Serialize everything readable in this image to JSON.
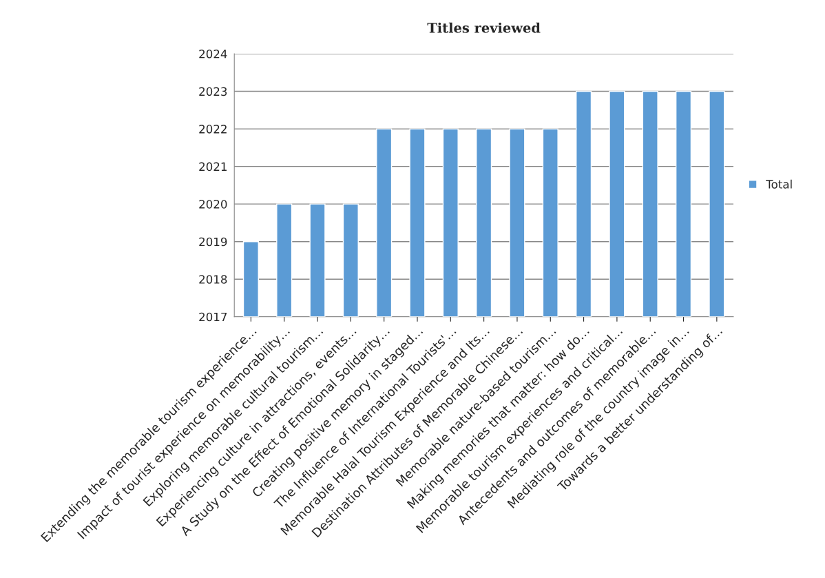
{
  "chart_data": {
    "type": "bar",
    "title": "Titles reviewed",
    "categories": [
      "Extending the memorable tourism experience…",
      "Impact of tourist experience on memorability…",
      "Exploring memorable cultural tourism…",
      "Experiencing culture in attractions, events…",
      "A Study on the Effect of Emotional Solidarity…",
      "Creating positive memory in staged…",
      "The Influence of International Tourists'…",
      "Memorable Halal Tourism Experience and Its…",
      "Destination Attributes of Memorable Chinese…",
      "Memorable nature-based tourism…",
      "Making memories that matter: how do…",
      "Memorable tourism experiences and critical…",
      "Antecedents and outcomes of memorable…",
      "Mediating role of the country image in…",
      "Towards a better understanding of…"
    ],
    "series": [
      {
        "name": "Total",
        "color": "#5b9bd5",
        "values": [
          2019,
          2020,
          2020,
          2020,
          2022,
          2022,
          2022,
          2022,
          2022,
          2022,
          2023,
          2023,
          2023,
          2023,
          2023
        ]
      }
    ],
    "ylim": [
      2017,
      2024
    ],
    "yticks": [
      2017,
      2018,
      2019,
      2020,
      2021,
      2022,
      2023,
      2024
    ],
    "grid": "y",
    "legend": "right"
  }
}
